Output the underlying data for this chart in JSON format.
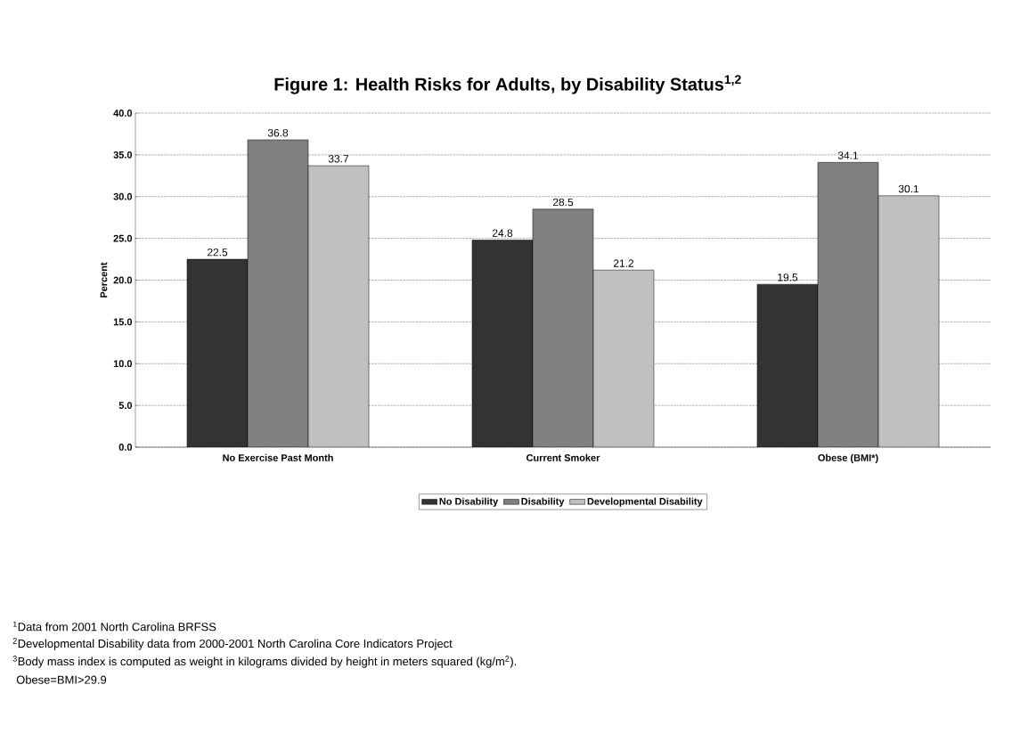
{
  "chart_data": {
    "type": "bar",
    "title": "Figure 1: Health Risks for Adults, by Disability Status$^{1,2}$",
    "ylabel": "Percent",
    "categories": [
      "No Exercise Past Month",
      "Current Smoker",
      "Obese (BMI*)"
    ],
    "series": [
      {
        "name": "No Disability",
        "color": "#333333",
        "values": [
          22.5,
          24.8,
          19.5
        ]
      },
      {
        "name": "Disability",
        "color": "#808080",
        "values": [
          36.8,
          28.5,
          34.1
        ]
      },
      {
        "name": "Developmental Disability",
        "color": "#c0c0c0",
        "values": [
          33.7,
          21.2,
          30.1
        ]
      }
    ],
    "ylim": [
      0,
      40
    ],
    "yticks": [
      {
        "value": 0,
        "label": "0.0"
      },
      {
        "value": 5,
        "label": "5.0"
      },
      {
        "value": 10,
        "label": "10.0"
      },
      {
        "value": 15,
        "label": "15.0"
      },
      {
        "value": 20,
        "label": "20.0"
      },
      {
        "value": 25,
        "label": "25.0"
      },
      {
        "value": 30,
        "label": "30.0"
      },
      {
        "value": 35,
        "label": "35.0"
      },
      {
        "value": 40,
        "label": "40.0"
      }
    ],
    "grid": "y",
    "legend": "bottom",
    "data_labels": true,
    "annotations": [
      "$^{1}$Data from 2001 North Carolina BRFSS",
      "$^{2}$Developmental Disability data from 2000-2001 North Carolina Core Indicators Project",
      "$^{3}$Body mass index is computed as weight in kilograms divided by height in meters squared (kg/m$^{2}$).",
      "Obese=BMI>29.9"
    ]
  }
}
